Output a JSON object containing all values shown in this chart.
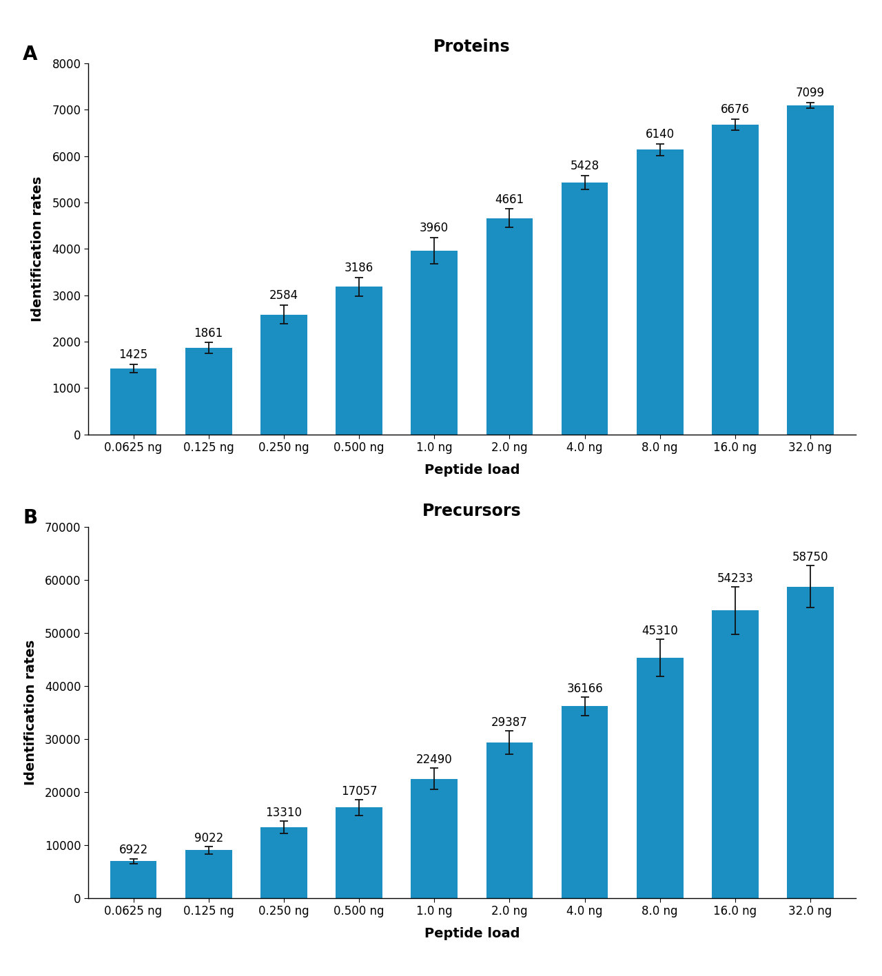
{
  "categories": [
    "0.0625 ng",
    "0.125 ng",
    "0.250 ng",
    "0.500 ng",
    "1.0 ng",
    "2.0 ng",
    "4.0 ng",
    "8.0 ng",
    "16.0 ng",
    "32.0 ng"
  ],
  "proteins_values": [
    1425,
    1861,
    2584,
    3186,
    3960,
    4661,
    5428,
    6140,
    6676,
    7099
  ],
  "proteins_errors": [
    90,
    120,
    200,
    200,
    280,
    200,
    150,
    130,
    120,
    60
  ],
  "precursors_values": [
    6922,
    9022,
    13310,
    17057,
    22490,
    29387,
    36166,
    45310,
    54233,
    58750
  ],
  "precursors_errors": [
    500,
    700,
    1200,
    1500,
    2000,
    2200,
    1800,
    3500,
    4500,
    4000
  ],
  "bar_color": "#1b8ec2",
  "title_A": "Proteins",
  "title_B": "Precursors",
  "ylabel": "Identification rates",
  "xlabel": "Peptide load",
  "label_A": "A",
  "label_B": "B",
  "proteins_ylim": [
    0,
    8000
  ],
  "precursors_ylim": [
    0,
    70000
  ],
  "proteins_yticks": [
    0,
    1000,
    2000,
    3000,
    4000,
    5000,
    6000,
    7000,
    8000
  ],
  "precursors_yticks": [
    0,
    10000,
    20000,
    30000,
    40000,
    50000,
    60000,
    70000
  ],
  "bg_color": "#ffffff",
  "ecolor": "#111111",
  "capsize": 4,
  "title_fontsize": 17,
  "label_fontsize": 14,
  "tick_fontsize": 12,
  "annot_fontsize": 12,
  "panel_label_fontsize": 20,
  "bar_width": 0.62
}
